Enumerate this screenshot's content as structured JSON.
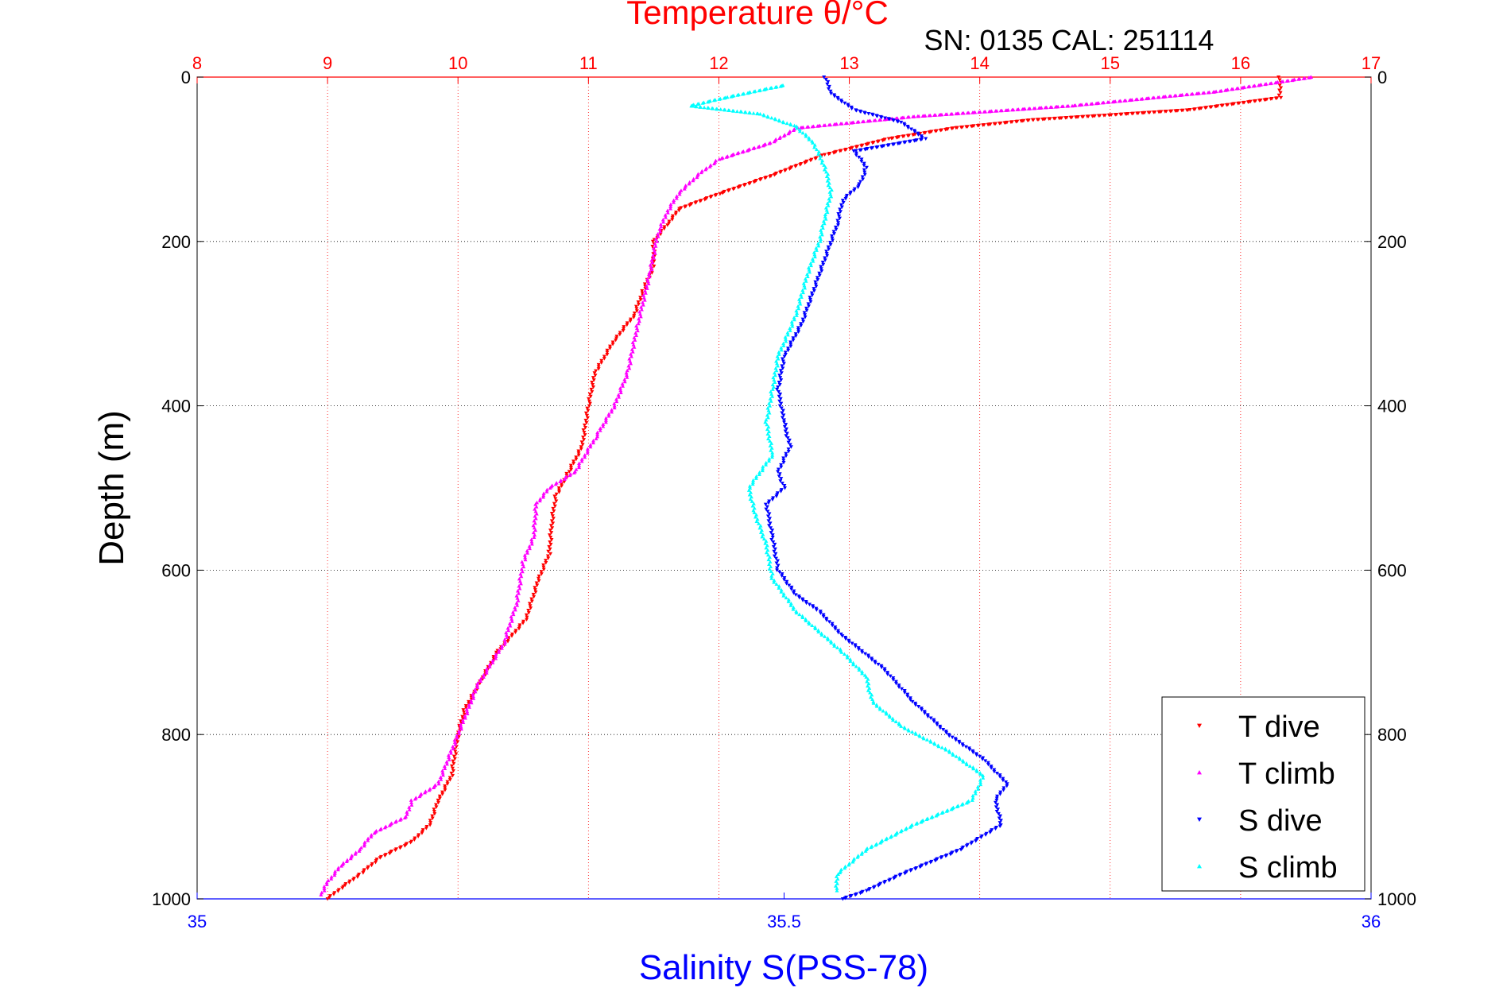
{
  "chart_data": {
    "type": "scatter",
    "title": "Temperature θ/°C",
    "subtitle": "SN: 0135  CAL: 251114",
    "ylabel": "Depth (m)",
    "xlabel_bottom": "Salinity S(PSS-78)",
    "top_axis": {
      "label": "Temperature θ/°C",
      "range": [
        8,
        17
      ],
      "ticks": [
        "8",
        "9",
        "10",
        "11",
        "12",
        "13",
        "14",
        "15",
        "16",
        "17"
      ],
      "color": "#ff0000"
    },
    "bottom_axis": {
      "label": "Salinity S(PSS-78)",
      "range": [
        35,
        36
      ],
      "ticks": [
        "35",
        "35.5",
        "36"
      ],
      "color": "#0000ff"
    },
    "y_axis": {
      "range": [
        0,
        1000
      ],
      "reversed": true,
      "ticks": [
        "0",
        "200",
        "400",
        "600",
        "800",
        "1000"
      ]
    },
    "grid": true,
    "legend_position": "bottom-right",
    "series": [
      {
        "name": "T dive",
        "axis": "temperature",
        "color": "#ff0000",
        "marker": "triangle-down",
        "points": [
          [
            16.3,
            0
          ],
          [
            16.3,
            10
          ],
          [
            16.3,
            25
          ],
          [
            15.6,
            40
          ],
          [
            14.4,
            52
          ],
          [
            13.8,
            62
          ],
          [
            13.3,
            75
          ],
          [
            12.8,
            95
          ],
          [
            12.4,
            120
          ],
          [
            12.0,
            142
          ],
          [
            11.7,
            160
          ],
          [
            11.6,
            180
          ],
          [
            11.5,
            200
          ],
          [
            11.5,
            230
          ],
          [
            11.42,
            260
          ],
          [
            11.35,
            290
          ],
          [
            11.2,
            320
          ],
          [
            11.05,
            360
          ],
          [
            11.0,
            400
          ],
          [
            10.95,
            450
          ],
          [
            10.85,
            480
          ],
          [
            10.75,
            510
          ],
          [
            10.72,
            540
          ],
          [
            10.7,
            580
          ],
          [
            10.62,
            610
          ],
          [
            10.52,
            660
          ],
          [
            10.3,
            700
          ],
          [
            10.12,
            750
          ],
          [
            10.05,
            770
          ],
          [
            10.0,
            800
          ],
          [
            9.95,
            850
          ],
          [
            9.85,
            880
          ],
          [
            9.78,
            910
          ],
          [
            9.65,
            930
          ],
          [
            9.4,
            950
          ],
          [
            9.25,
            970
          ],
          [
            9.12,
            985
          ],
          [
            9.0,
            1000
          ]
        ]
      },
      {
        "name": "T climb",
        "axis": "temperature",
        "color": "#ff00ff",
        "marker": "triangle-up",
        "points": [
          [
            16.55,
            0
          ],
          [
            15.8,
            18
          ],
          [
            14.7,
            35
          ],
          [
            13.5,
            48
          ],
          [
            12.6,
            62
          ],
          [
            12.4,
            80
          ],
          [
            12.0,
            100
          ],
          [
            11.85,
            118
          ],
          [
            11.7,
            140
          ],
          [
            11.6,
            165
          ],
          [
            11.55,
            185
          ],
          [
            11.52,
            200
          ],
          [
            11.47,
            240
          ],
          [
            11.38,
            300
          ],
          [
            11.3,
            360
          ],
          [
            11.2,
            400
          ],
          [
            11.05,
            440
          ],
          [
            10.9,
            480
          ],
          [
            10.7,
            500
          ],
          [
            10.6,
            520
          ],
          [
            10.58,
            560
          ],
          [
            10.5,
            590
          ],
          [
            10.45,
            640
          ],
          [
            10.35,
            690
          ],
          [
            10.15,
            740
          ],
          [
            10.05,
            780
          ],
          [
            9.95,
            820
          ],
          [
            9.85,
            860
          ],
          [
            9.65,
            880
          ],
          [
            9.6,
            900
          ],
          [
            9.35,
            920
          ],
          [
            9.25,
            940
          ],
          [
            9.1,
            960
          ],
          [
            9.0,
            980
          ],
          [
            8.95,
            995
          ]
        ]
      },
      {
        "name": "S dive",
        "axis": "salinity",
        "color": "#0000ff",
        "marker": "triangle-down",
        "points": [
          [
            35.535,
            0
          ],
          [
            35.54,
            20
          ],
          [
            35.56,
            40
          ],
          [
            35.6,
            55
          ],
          [
            35.62,
            75
          ],
          [
            35.56,
            90
          ],
          [
            35.57,
            110
          ],
          [
            35.565,
            130
          ],
          [
            35.55,
            150
          ],
          [
            35.545,
            180
          ],
          [
            35.535,
            220
          ],
          [
            35.525,
            260
          ],
          [
            35.515,
            300
          ],
          [
            35.5,
            340
          ],
          [
            35.495,
            380
          ],
          [
            35.5,
            420
          ],
          [
            35.505,
            450
          ],
          [
            35.495,
            480
          ],
          [
            35.5,
            500
          ],
          [
            35.485,
            520
          ],
          [
            35.49,
            560
          ],
          [
            35.495,
            600
          ],
          [
            35.51,
            630
          ],
          [
            35.53,
            650
          ],
          [
            35.55,
            680
          ],
          [
            35.585,
            720
          ],
          [
            35.61,
            760
          ],
          [
            35.64,
            800
          ],
          [
            35.67,
            830
          ],
          [
            35.69,
            860
          ],
          [
            35.68,
            880
          ],
          [
            35.685,
            910
          ],
          [
            35.65,
            940
          ],
          [
            35.6,
            970
          ],
          [
            35.57,
            990
          ],
          [
            35.55,
            1000
          ]
        ]
      },
      {
        "name": "S climb",
        "axis": "salinity",
        "color": "#00ffff",
        "marker": "triangle-up",
        "points": [
          [
            35.5,
            10
          ],
          [
            35.45,
            25
          ],
          [
            35.42,
            35
          ],
          [
            35.48,
            45
          ],
          [
            35.51,
            60
          ],
          [
            35.525,
            80
          ],
          [
            35.535,
            110
          ],
          [
            35.54,
            140
          ],
          [
            35.535,
            170
          ],
          [
            35.53,
            200
          ],
          [
            35.52,
            240
          ],
          [
            35.51,
            290
          ],
          [
            35.495,
            340
          ],
          [
            35.49,
            380
          ],
          [
            35.485,
            420
          ],
          [
            35.49,
            460
          ],
          [
            35.47,
            500
          ],
          [
            35.475,
            530
          ],
          [
            35.485,
            570
          ],
          [
            35.49,
            610
          ],
          [
            35.51,
            650
          ],
          [
            35.55,
            700
          ],
          [
            35.57,
            730
          ],
          [
            35.575,
            760
          ],
          [
            35.6,
            790
          ],
          [
            35.64,
            820
          ],
          [
            35.67,
            850
          ],
          [
            35.66,
            880
          ],
          [
            35.61,
            910
          ],
          [
            35.57,
            940
          ],
          [
            35.545,
            970
          ],
          [
            35.545,
            990
          ]
        ]
      }
    ]
  }
}
